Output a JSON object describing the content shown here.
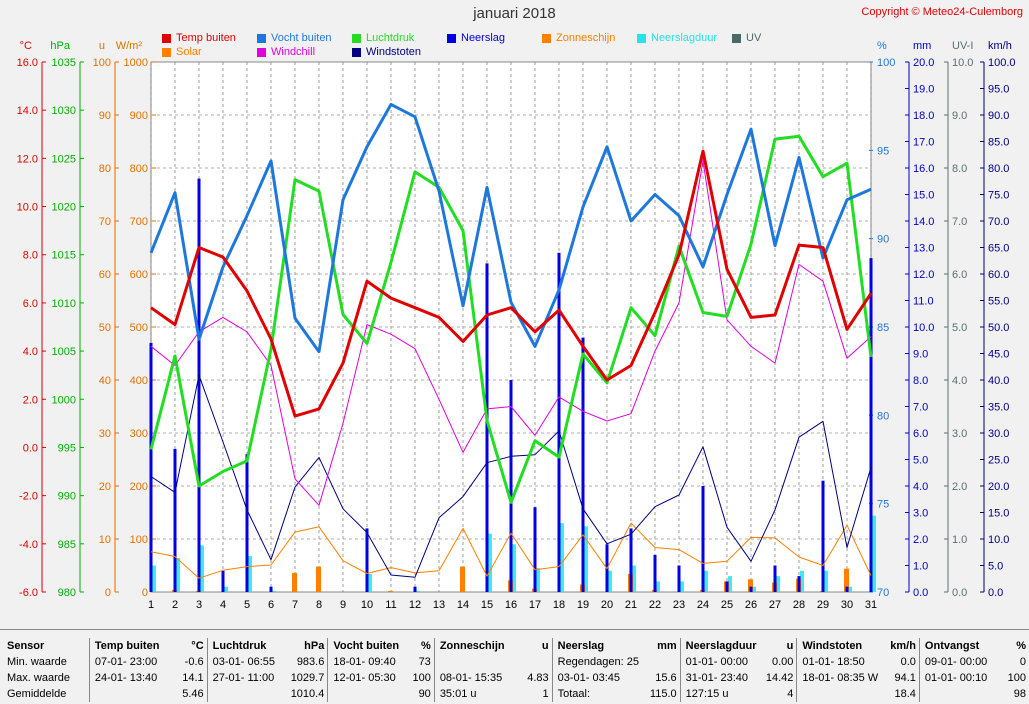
{
  "title": "januari 2018",
  "copyright": "Copyright © Meteo24-Culemborg",
  "axes": {
    "temp": {
      "unit": "°C",
      "color": "#e00000",
      "ticks": [
        "16.0",
        "14.0",
        "12.0",
        "10.0",
        "8.0",
        "6.0",
        "4.0",
        "2.0",
        "0.0",
        "-2.0",
        "-4.0",
        "-6.0"
      ]
    },
    "pressure": {
      "unit": "hPa",
      "color": "#00b000",
      "ticks": [
        "1035",
        "1030",
        "1025",
        "1020",
        "1015",
        "1010",
        "1005",
        "1000",
        "995",
        "990",
        "985",
        "980"
      ]
    },
    "hours": {
      "unit": "u",
      "color": "#e07000",
      "ticks": [
        "100",
        "90",
        "80",
        "70",
        "60",
        "50",
        "40",
        "30",
        "20",
        "10",
        "0"
      ]
    },
    "solar": {
      "unit": "W/m²",
      "color": "#e07000",
      "ticks": [
        "1000",
        "900",
        "800",
        "700",
        "600",
        "500",
        "400",
        "300",
        "200",
        "100",
        "0"
      ]
    },
    "humidity": {
      "unit": "%",
      "color": "#1e78dc",
      "ticks": [
        "100",
        "95",
        "90",
        "85",
        "80",
        "75",
        "70"
      ]
    },
    "rain": {
      "unit": "mm",
      "color": "#0000c8",
      "ticks": [
        "20.0",
        "19.0",
        "18.0",
        "17.0",
        "16.0",
        "15.0",
        "14.0",
        "13.0",
        "12.0",
        "11.0",
        "10.0",
        "9.0",
        "8.0",
        "7.0",
        "6.0",
        "5.0",
        "4.0",
        "3.0",
        "2.0",
        "1.0",
        "0.0"
      ]
    },
    "uv": {
      "unit": "UV-I",
      "color": "#5a6e6e",
      "ticks": [
        "10.0",
        "9.0",
        "8.0",
        "7.0",
        "6.0",
        "5.0",
        "4.0",
        "3.0",
        "2.0",
        "1.0",
        "0.0"
      ]
    },
    "wind": {
      "unit": "km/h",
      "color": "#000080",
      "ticks": [
        "100.0",
        "95.0",
        "90.0",
        "85.0",
        "80.0",
        "75.0",
        "70.0",
        "65.0",
        "60.0",
        "55.0",
        "50.0",
        "45.0",
        "40.0",
        "35.0",
        "30.0",
        "25.0",
        "20.0",
        "15.0",
        "10.0",
        "5.0",
        "0.0"
      ]
    }
  },
  "legend": [
    {
      "label": "Temp buiten",
      "color": "#e00000"
    },
    {
      "label": "Vocht buiten",
      "color": "#1e78dc"
    },
    {
      "label": "Luchtdruk",
      "color": "#22dd22"
    },
    {
      "label": "Neerslag",
      "color": "#0000e0"
    },
    {
      "label": "Zonneschijn",
      "color": "#ff8000"
    },
    {
      "label": "Neerslagduur",
      "color": "#22e6e6"
    },
    {
      "label": "UV",
      "color": "#4a6a6a"
    },
    {
      "label": "Solar",
      "color": "#ff8000"
    },
    {
      "label": "Windchill",
      "color": "#e000e0"
    },
    {
      "label": "Windstoten",
      "color": "#000080"
    }
  ],
  "chart_data": {
    "type": "line",
    "x": [
      1,
      2,
      3,
      4,
      5,
      6,
      7,
      8,
      9,
      10,
      11,
      12,
      13,
      14,
      15,
      16,
      17,
      18,
      19,
      20,
      21,
      22,
      23,
      24,
      25,
      26,
      27,
      28,
      29,
      30,
      31
    ],
    "series": [
      {
        "name": "Temp buiten",
        "unit": "°C",
        "color": "#e00000",
        "values": [
          5.8,
          5.1,
          8.3,
          7.9,
          6.5,
          4.5,
          1.3,
          1.6,
          3.5,
          6.9,
          6.2,
          5.8,
          5.4,
          4.4,
          5.5,
          5.8,
          4.8,
          5.7,
          4.2,
          2.8,
          3.4,
          5.6,
          8.0,
          12.3,
          7.4,
          5.4,
          5.5,
          8.4,
          8.3,
          4.9,
          6.4
        ]
      },
      {
        "name": "Vocht buiten",
        "unit": "%",
        "color": "#1e78dc",
        "values": [
          89.2,
          92.6,
          84.3,
          88.4,
          91.3,
          94.4,
          85.5,
          83.6,
          92.2,
          95.2,
          97.6,
          96.9,
          92.7,
          86.2,
          92.9,
          86.4,
          83.9,
          87.1,
          91.8,
          95.2,
          91.0,
          92.5,
          91.3,
          88.4,
          92.5,
          96.2,
          89.6,
          94.6,
          88.9,
          92.2,
          92.8
        ]
      },
      {
        "name": "Luchtdruk",
        "unit": "hPa",
        "color": "#22dd22",
        "values": [
          994.8,
          1004.5,
          991.0,
          992.5,
          993.6,
          1005.2,
          1022.8,
          1021.6,
          1008.8,
          1005.8,
          1014.2,
          1023.6,
          1022.0,
          1017.5,
          997.8,
          989.3,
          995.7,
          994.0,
          1004.7,
          1001.7,
          1009.5,
          1006.6,
          1015.9,
          1009.0,
          1008.6,
          1016.1,
          1027.0,
          1027.3,
          1023.1,
          1024.5,
          1004.4
        ]
      },
      {
        "name": "Windchill",
        "unit": "°C",
        "color": "#e000e0",
        "values": [
          4.2,
          3.4,
          4.8,
          5.4,
          4.8,
          3.4,
          -1.3,
          -2.4,
          1.0,
          5.1,
          4.7,
          4.1,
          2.0,
          -0.2,
          1.6,
          1.7,
          0.5,
          2.1,
          1.5,
          1.1,
          1.4,
          4.0,
          6.0,
          11.9,
          5.3,
          4.2,
          3.5,
          7.6,
          6.9,
          3.7,
          4.6
        ]
      },
      {
        "name": "Windstoten",
        "unit": "km/h",
        "color": "#000080",
        "values": [
          21.8,
          18.8,
          40.9,
          28.3,
          15.5,
          6.1,
          19.8,
          25.4,
          15.7,
          11.2,
          3.2,
          2.8,
          14.0,
          18.0,
          24.4,
          25.6,
          25.9,
          30.4,
          15.7,
          9.1,
          10.9,
          16.1,
          18.3,
          27.4,
          12.2,
          5.8,
          15.5,
          29.2,
          32.2,
          8.4,
          23.5
        ]
      },
      {
        "name": "Solar",
        "unit": "W/m²",
        "color": "#ff8000",
        "values": [
          76,
          67,
          26,
          41,
          48,
          51,
          113,
          123,
          59,
          35,
          46,
          36,
          40,
          120,
          30,
          111,
          42,
          48,
          108,
          44,
          130,
          84,
          80,
          54,
          58,
          103,
          102,
          66,
          50,
          126,
          31
        ]
      },
      {
        "name": "Neerslag",
        "unit": "mm",
        "color": "#0000e0",
        "bar": true,
        "values": [
          9.4,
          5.4,
          15.6,
          0.8,
          5.2,
          0.2,
          0.0,
          0.0,
          0.0,
          2.4,
          0.0,
          0.2,
          0.0,
          0.0,
          12.4,
          8.0,
          3.2,
          12.8,
          9.6,
          1.8,
          2.4,
          1.4,
          1.0,
          4.0,
          0.4,
          0.2,
          1.0,
          0.6,
          4.2,
          0.2,
          12.6
        ]
      },
      {
        "name": "Neerslagduur",
        "unit": "u",
        "color": "#22e6e6",
        "bar": true,
        "values": [
          5.0,
          6.4,
          8.8,
          1.0,
          6.8,
          0.2,
          0.0,
          0.0,
          0.0,
          3.4,
          0.0,
          0.2,
          0.0,
          0.0,
          11.0,
          9.0,
          4.5,
          13.0,
          12.4,
          4.0,
          5.0,
          2.0,
          2.0,
          4.0,
          3.0,
          1.0,
          3.0,
          4.0,
          4.0,
          1.0,
          14.4
        ]
      },
      {
        "name": "Zonneschijn",
        "unit": "u",
        "color": "#ff8000",
        "bar": true,
        "values": [
          0.0,
          0.4,
          0.2,
          0.0,
          0.0,
          0.0,
          3.6,
          4.8,
          0.0,
          0.0,
          0.2,
          0.0,
          0.0,
          4.8,
          0.0,
          2.2,
          0.6,
          0.0,
          1.4,
          0.0,
          3.4,
          0.4,
          0.0,
          0.4,
          2.0,
          2.4,
          1.8,
          2.5,
          0.2,
          4.4,
          0.0
        ]
      }
    ],
    "xlim": [
      1,
      31
    ],
    "grid": true
  },
  "stats": {
    "headers": [
      {
        "label": "Sensor",
        "unit": ""
      },
      {
        "label": "Temp buiten",
        "unit": "°C"
      },
      {
        "label": "Luchtdruk",
        "unit": "hPa"
      },
      {
        "label": "Vocht buiten",
        "unit": "%"
      },
      {
        "label": "Zonneschijn",
        "unit": "u"
      },
      {
        "label": "Neerslag",
        "unit": "mm"
      },
      {
        "label": "Neerslagduur",
        "unit": "u"
      },
      {
        "label": "Windstoten",
        "unit": "km/h"
      },
      {
        "label": "Ontvangst",
        "unit": "%"
      }
    ],
    "rows": [
      {
        "label": "Min. waarde",
        "cells": [
          [
            "07-01- 23:00",
            "-0.6"
          ],
          [
            "03-01- 06:55",
            "983.6"
          ],
          [
            "18-01- 09:40",
            "73"
          ],
          [
            "",
            ""
          ],
          [
            "Regendagen: 25",
            ""
          ],
          [
            "01-01- 00:00",
            "0.00"
          ],
          [
            "01-01- 18:50",
            "0.0"
          ],
          [
            "09-01- 00:00",
            "0"
          ]
        ]
      },
      {
        "label": "Max. waarde",
        "cells": [
          [
            "24-01- 13:40",
            "14.1"
          ],
          [
            "27-01- 11:00",
            "1029.7"
          ],
          [
            "12-01- 05:30",
            "100"
          ],
          [
            "08-01- 15:35",
            "4.83"
          ],
          [
            "03-01- 03:45",
            "15.6"
          ],
          [
            "31-01- 23:40",
            "14.42"
          ],
          [
            "18-01- 08:35 W",
            "94.1"
          ],
          [
            "01-01- 00:10",
            "100"
          ]
        ]
      },
      {
        "label": "Gemiddelde",
        "cells": [
          [
            "",
            "5.46"
          ],
          [
            "",
            "1010.4"
          ],
          [
            "",
            "90"
          ],
          [
            "35:01 u",
            "1"
          ],
          [
            "Totaal:",
            "115.0"
          ],
          [
            "127:15 u",
            "4"
          ],
          [
            "",
            "18.4"
          ],
          [
            "",
            "98"
          ]
        ]
      }
    ]
  }
}
